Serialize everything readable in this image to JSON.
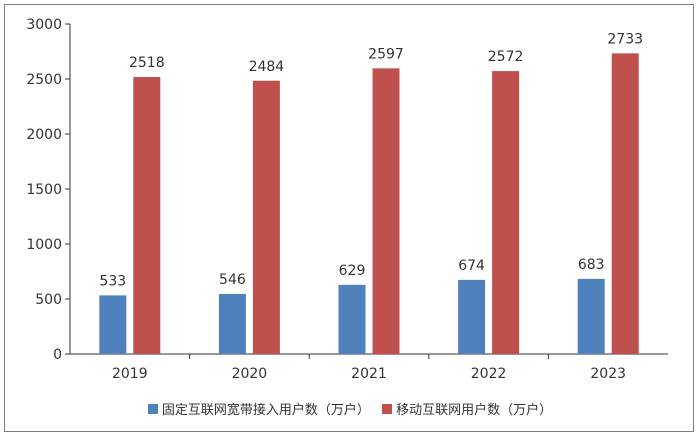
{
  "chart_data": {
    "type": "bar",
    "categories": [
      "2019",
      "2020",
      "2021",
      "2022",
      "2023"
    ],
    "series": [
      {
        "name": "固定互联网宽带接入用户数（万户）",
        "values": [
          533,
          546,
          629,
          674,
          683
        ],
        "color": "#4f81bd"
      },
      {
        "name": "移动互联网用户数（万户）",
        "values": [
          2518,
          2484,
          2597,
          2572,
          2733
        ],
        "color": "#c0504d"
      }
    ],
    "ylim": [
      0,
      3000
    ],
    "yticks": [
      0,
      500,
      1000,
      1500,
      2000,
      2500,
      3000
    ],
    "title": "",
    "xlabel": "",
    "ylabel": "",
    "grid": false,
    "legend_position": "bottom"
  }
}
